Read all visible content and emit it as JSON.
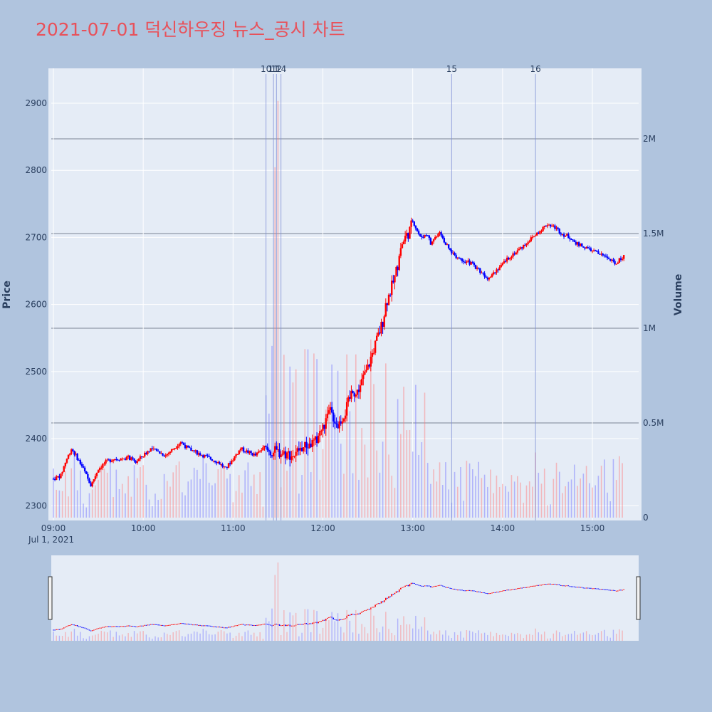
{
  "title": "2021-07-01 덕신하우징 뉴스_공시 차트",
  "colors": {
    "title": "#e8515a",
    "up": "#ff0000",
    "down": "#0000ff",
    "plot_bg": "#e5ecf6",
    "paper_bg": "#b0c4de"
  },
  "chart_data": {
    "type": "candlestick",
    "y_title": "Price",
    "y2_title": "Volume",
    "date_label": "Jul 1, 2021",
    "x_ticks": [
      "09:00",
      "10:00",
      "11:00",
      "12:00",
      "13:00",
      "14:00",
      "15:00"
    ],
    "price_ticks": [
      "2300",
      "2400",
      "2500",
      "2600",
      "2700",
      "2800",
      "2900"
    ],
    "volume_ticks": [
      "0",
      "0.5M",
      "1M",
      "1.5M",
      "2M"
    ],
    "price_range": [
      2278,
      2952
    ],
    "volume_range": [
      0,
      2380000
    ],
    "time_range_minutes": [
      0,
      396
    ],
    "event_markers": [
      {
        "label": "10",
        "minute": 142
      },
      {
        "label": "11",
        "minute": 147
      },
      {
        "label": "12",
        "minute": 149
      },
      {
        "label": "14",
        "minute": 152
      },
      {
        "label": "15",
        "minute": 266
      },
      {
        "label": "16",
        "minute": 322
      }
    ],
    "price_path": [
      [
        0,
        2340
      ],
      [
        5,
        2345
      ],
      [
        8,
        2365
      ],
      [
        12,
        2385
      ],
      [
        15,
        2375
      ],
      [
        20,
        2355
      ],
      [
        25,
        2330
      ],
      [
        30,
        2355
      ],
      [
        35,
        2365
      ],
      [
        40,
        2370
      ],
      [
        45,
        2370
      ],
      [
        50,
        2372
      ],
      [
        55,
        2365
      ],
      [
        60,
        2375
      ],
      [
        65,
        2385
      ],
      [
        70,
        2380
      ],
      [
        75,
        2375
      ],
      [
        80,
        2385
      ],
      [
        85,
        2395
      ],
      [
        90,
        2385
      ],
      [
        95,
        2380
      ],
      [
        100,
        2375
      ],
      [
        105,
        2370
      ],
      [
        110,
        2365
      ],
      [
        115,
        2355
      ],
      [
        120,
        2370
      ],
      [
        125,
        2385
      ],
      [
        130,
        2380
      ],
      [
        135,
        2375
      ],
      [
        140,
        2385
      ],
      [
        145,
        2380
      ],
      [
        150,
        2380
      ],
      [
        155,
        2378
      ],
      [
        160,
        2375
      ],
      [
        165,
        2385
      ],
      [
        170,
        2390
      ],
      [
        175,
        2395
      ],
      [
        178,
        2410
      ],
      [
        180,
        2415
      ],
      [
        185,
        2440
      ],
      [
        190,
        2420
      ],
      [
        195,
        2440
      ],
      [
        198,
        2460
      ],
      [
        200,
        2475
      ],
      [
        202,
        2465
      ],
      [
        205,
        2480
      ],
      [
        208,
        2495
      ],
      [
        210,
        2505
      ],
      [
        212,
        2520
      ],
      [
        215,
        2540
      ],
      [
        218,
        2560
      ],
      [
        220,
        2575
      ],
      [
        222,
        2600
      ],
      [
        225,
        2620
      ],
      [
        228,
        2640
      ],
      [
        230,
        2660
      ],
      [
        232,
        2685
      ],
      [
        235,
        2700
      ],
      [
        238,
        2710
      ],
      [
        240,
        2725
      ],
      [
        245,
        2700
      ],
      [
        250,
        2705
      ],
      [
        252,
        2690
      ],
      [
        255,
        2700
      ],
      [
        258,
        2710
      ],
      [
        260,
        2700
      ],
      [
        262,
        2690
      ],
      [
        265,
        2680
      ],
      [
        270,
        2670
      ],
      [
        275,
        2665
      ],
      [
        280,
        2660
      ],
      [
        285,
        2650
      ],
      [
        290,
        2640
      ],
      [
        295,
        2650
      ],
      [
        300,
        2660
      ],
      [
        305,
        2672
      ],
      [
        310,
        2680
      ],
      [
        315,
        2690
      ],
      [
        320,
        2700
      ],
      [
        325,
        2710
      ],
      [
        330,
        2720
      ],
      [
        335,
        2715
      ],
      [
        340,
        2705
      ],
      [
        345,
        2700
      ],
      [
        350,
        2690
      ],
      [
        355,
        2685
      ],
      [
        360,
        2680
      ],
      [
        365,
        2675
      ],
      [
        370,
        2670
      ],
      [
        375,
        2660
      ],
      [
        380,
        2670
      ],
      [
        385,
        2675
      ],
      [
        390,
        2680
      ],
      [
        396,
        2680
      ]
    ]
  }
}
